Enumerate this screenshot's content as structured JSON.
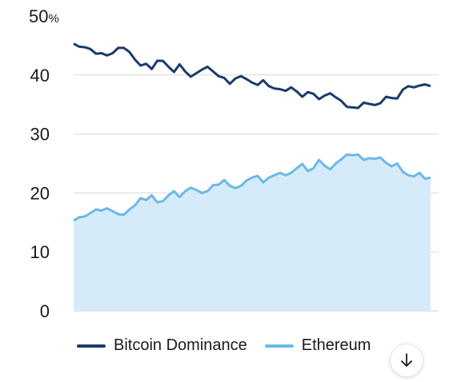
{
  "chart_data": {
    "type": "area",
    "y_ticks": [
      0,
      10,
      20,
      30,
      40,
      50
    ],
    "y_unit_suffix": "%",
    "ylim": [
      0,
      50
    ],
    "grid": true,
    "legend_placement": "bottom-left",
    "series": [
      {
        "name": "Bitcoin Dominance",
        "color": "#1b3a6b",
        "values": [
          45.3,
          44.8,
          44.7,
          44.4,
          43.6,
          43.7,
          43.3,
          43.7,
          44.6,
          44.6,
          43.9,
          42.6,
          41.6,
          41.9,
          41.0,
          42.4,
          42.4,
          41.4,
          40.5,
          41.8,
          40.6,
          39.7,
          40.3,
          40.9,
          41.4,
          40.6,
          39.8,
          39.5,
          38.5,
          39.4,
          39.8,
          39.3,
          38.7,
          38.3,
          39.1,
          38.1,
          37.7,
          37.6,
          37.3,
          37.9,
          37.2,
          36.3,
          37.1,
          36.8,
          35.9,
          36.5,
          36.9,
          36.2,
          35.6,
          34.6,
          34.5,
          34.4,
          35.3,
          35.1,
          34.9,
          35.2,
          36.3,
          36.1,
          36.0,
          37.5,
          38.1,
          37.9,
          38.2,
          38.4,
          38.1
        ]
      },
      {
        "name": "Ethereum",
        "color": "#6cb8e8",
        "fill": "#d6ebf9",
        "values": [
          15.3,
          15.9,
          16.0,
          16.6,
          17.2,
          17.0,
          17.4,
          16.9,
          16.4,
          16.3,
          17.2,
          17.9,
          19.1,
          18.8,
          19.6,
          18.4,
          18.6,
          19.6,
          20.3,
          19.3,
          20.3,
          20.9,
          20.5,
          20.0,
          20.3,
          21.3,
          21.4,
          22.2,
          21.2,
          20.8,
          21.2,
          22.1,
          22.6,
          22.9,
          21.8,
          22.6,
          23.0,
          23.4,
          23.0,
          23.4,
          24.2,
          24.9,
          23.7,
          24.2,
          25.6,
          24.6,
          24.0,
          25.0,
          25.7,
          26.5,
          26.4,
          26.5,
          25.6,
          25.9,
          25.8,
          26.0,
          25.1,
          24.5,
          25.0,
          23.6,
          23.0,
          22.8,
          23.4,
          22.4,
          22.6
        ]
      }
    ]
  },
  "ui": {
    "scroll_down_icon": "arrow-down-icon"
  }
}
